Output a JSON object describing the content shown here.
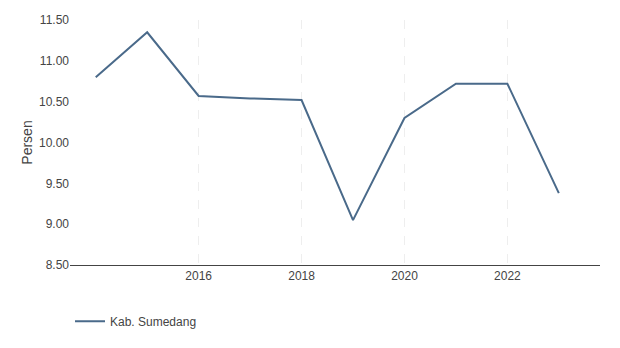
{
  "chart_data": {
    "type": "line",
    "x": [
      2014,
      2015,
      2016,
      2017,
      2018,
      2019,
      2020,
      2021,
      2022,
      2023
    ],
    "series": [
      {
        "name": "Kab. Sumedang",
        "color": "#4a6a8a",
        "values": [
          10.8,
          11.35,
          10.57,
          10.54,
          10.52,
          9.05,
          10.3,
          10.72,
          10.72,
          9.38
        ]
      }
    ],
    "ylabel": "Persen",
    "xlim": [
      2013.5,
      2023.8
    ],
    "xticks": [
      2016,
      2018,
      2020,
      2022
    ],
    "ylim": [
      8.5,
      11.5
    ],
    "yticks": [
      {
        "value": 8.5,
        "label": "8.50"
      },
      {
        "value": 9,
        "label": "9.00"
      },
      {
        "value": 9.5,
        "label": "9.50"
      },
      {
        "value": 10,
        "label": "10.00"
      },
      {
        "value": 10.5,
        "label": "10.50"
      },
      {
        "value": 11,
        "label": "11.00"
      },
      {
        "value": 11.5,
        "label": "11.50"
      }
    ],
    "grid": "x",
    "legend": "bottom"
  }
}
